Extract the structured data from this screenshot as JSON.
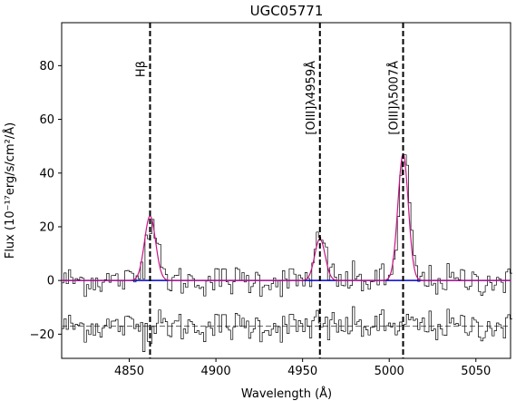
{
  "chart_data": {
    "type": "line",
    "title": "UGC05771",
    "xlabel": "Wavelength (Å)",
    "ylabel": "Flux (10⁻¹⁷erg/s/cm²/Å)",
    "xlim": [
      4811,
      5070
    ],
    "ylim": [
      -29,
      96
    ],
    "xticks": [
      4850,
      4900,
      4950,
      5000,
      5050
    ],
    "yticks": [
      -20,
      0,
      20,
      40,
      60,
      80
    ],
    "grid": false,
    "lines": [
      {
        "label": "Hβ",
        "wavelength": 4862
      },
      {
        "label": "[OIII]λ4959Å",
        "wavelength": 4960
      },
      {
        "label": "[OIII]λ5007Å",
        "wavelength": 5008
      }
    ],
    "fit_components": [
      {
        "center": 4862,
        "amplitude": 24,
        "sigma": 3.2
      },
      {
        "center": 4960,
        "amplitude": 15.5,
        "sigma": 3.0
      },
      {
        "center": 5008,
        "amplitude": 47,
        "sigma": 3.0
      }
    ],
    "continuum_level": 0,
    "residual_offset": -17,
    "colors": {
      "spectrum": "#000000",
      "fit": "#c71585",
      "continuum": "#0000cc",
      "lines": "#000000",
      "residual_ref": "#777777"
    }
  }
}
